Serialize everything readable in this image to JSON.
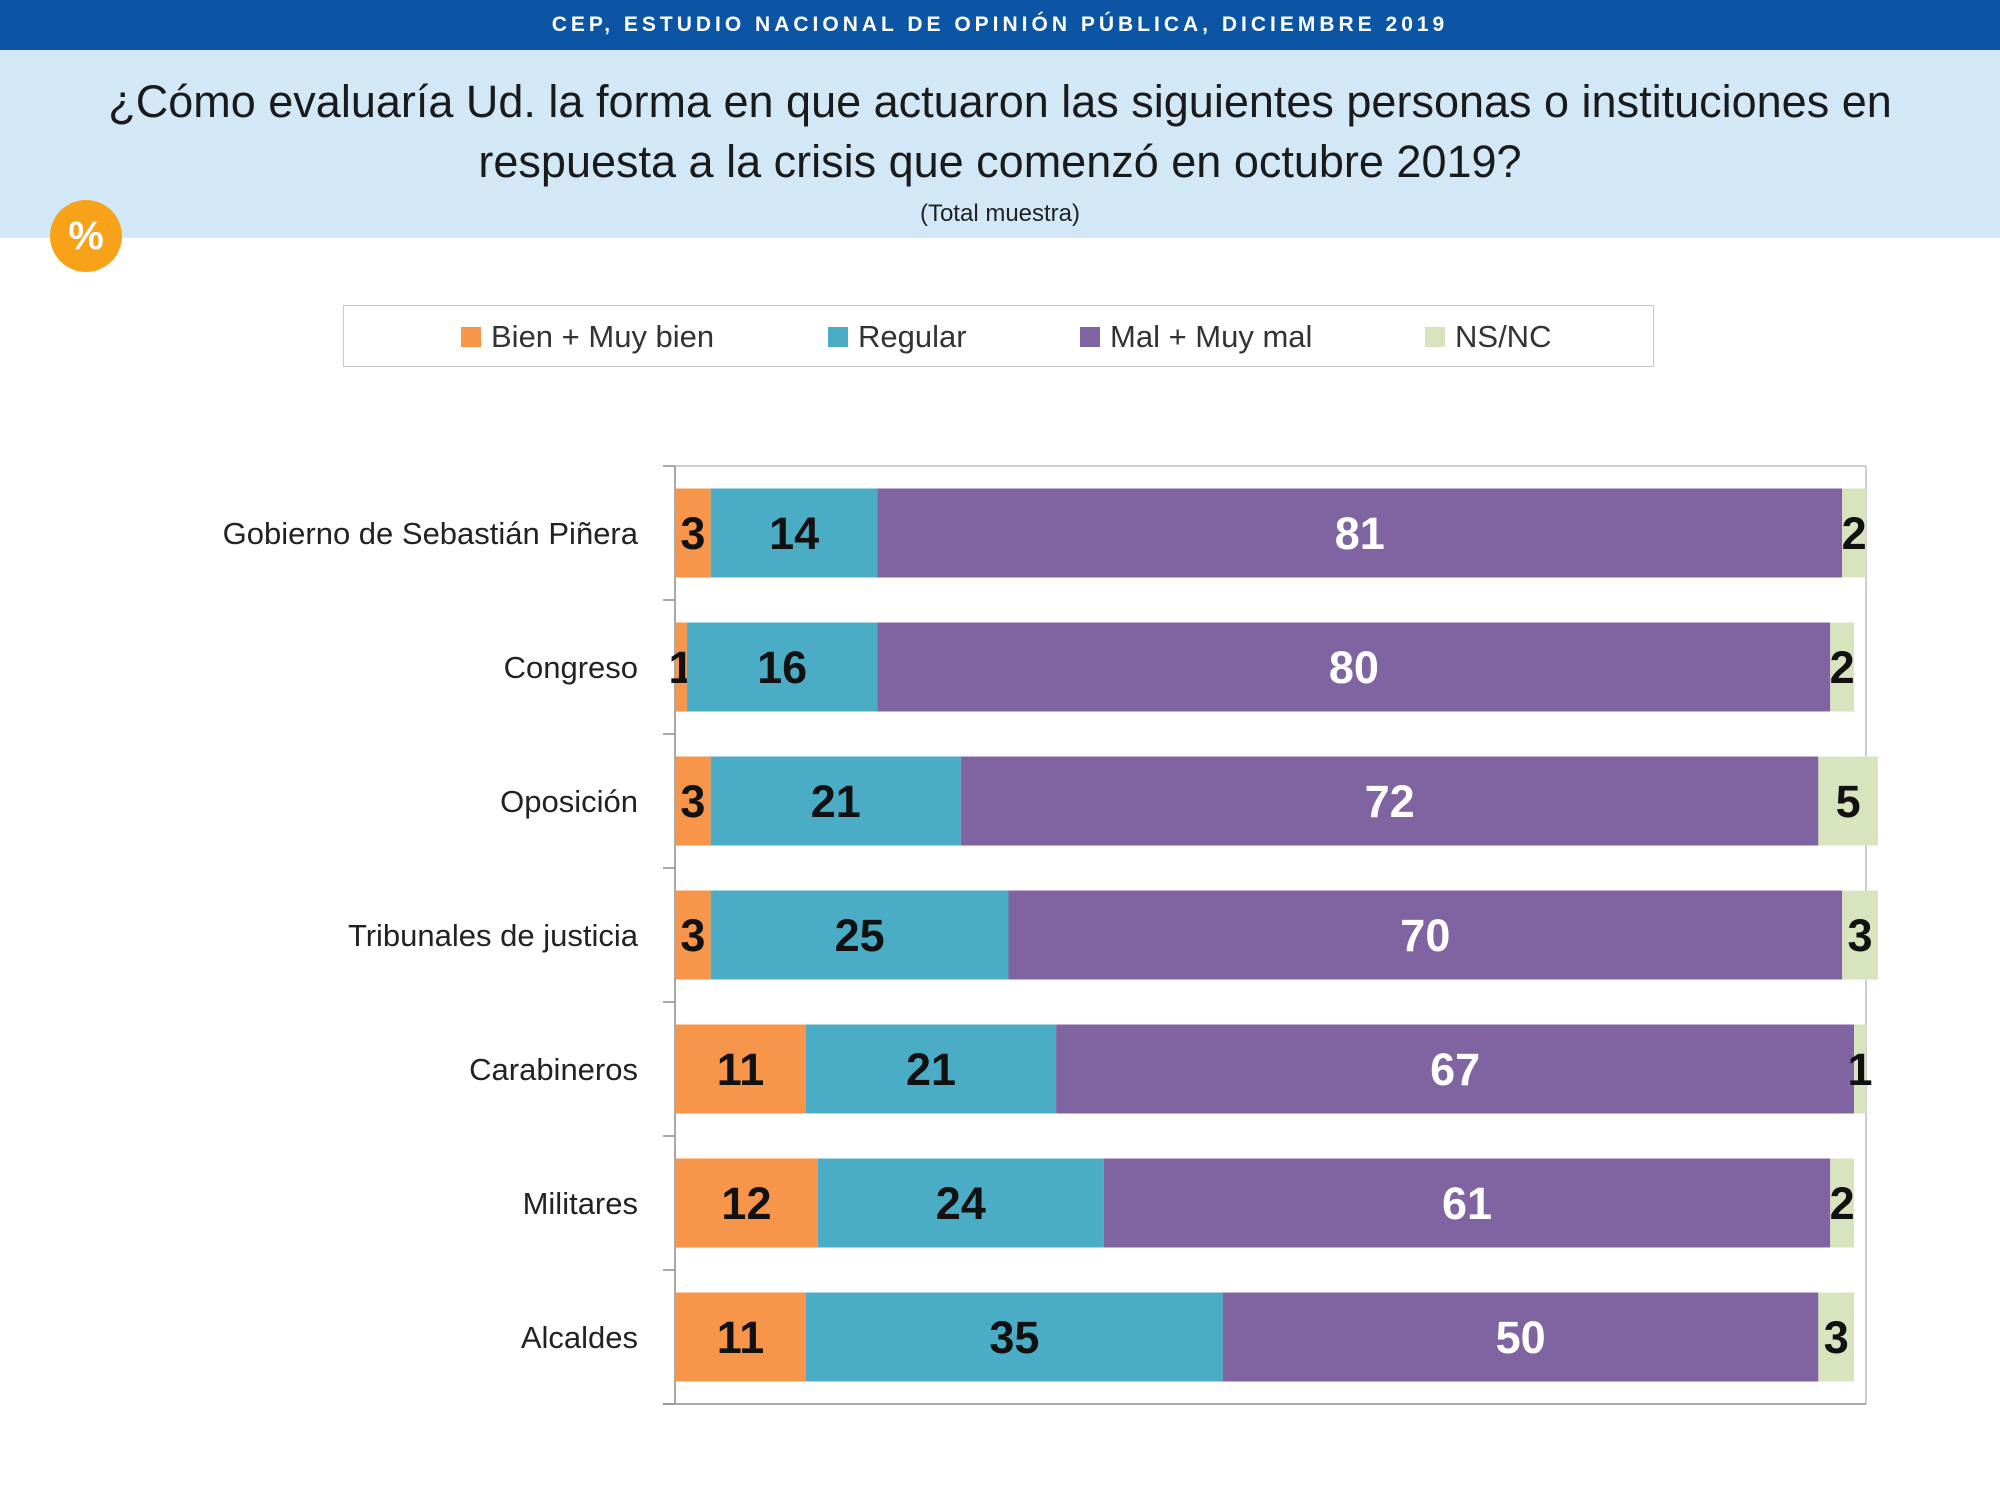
{
  "header": {
    "top_banner": "CEP, ESTUDIO NACIONAL DE OPINIÓN PÚBLICA, DICIEMBRE 2019",
    "question_line1": "¿Cómo evaluaría Ud. la forma en que actuaron las siguientes personas o instituciones en",
    "question_line2": "respuesta a la crisis que comenzó en octubre 2019?",
    "subtitle": "(Total muestra)",
    "badge": "%"
  },
  "colors": {
    "banner": "#0b55a4",
    "header_bg": "#d3e8f7",
    "badge": "#f7a219"
  },
  "chart_data": {
    "type": "bar",
    "orientation": "horizontal",
    "stacked": true,
    "legend_position": "top",
    "xlim": [
      0,
      100
    ],
    "categories": [
      "Gobierno de Sebastián Piñera",
      "Congreso",
      "Oposición",
      "Tribunales de justicia",
      "Carabineros",
      "Militares",
      "Alcaldes"
    ],
    "series": [
      {
        "name": "Bien + Muy bien",
        "color": "#f7964a",
        "label_color": "#111111",
        "values": [
          3,
          1,
          3,
          3,
          11,
          12,
          11
        ]
      },
      {
        "name": "Regular",
        "color": "#4bacc6",
        "label_color": "#111111",
        "values": [
          14,
          16,
          21,
          25,
          21,
          24,
          35
        ]
      },
      {
        "name": "Mal + Muy mal",
        "color": "#8064a2",
        "label_color": "#ffffff",
        "values": [
          81,
          80,
          72,
          70,
          67,
          61,
          50
        ]
      },
      {
        "name": "NS/NC",
        "color": "#d7e4bd",
        "label_color": "#111111",
        "values": [
          2,
          2,
          5,
          3,
          1,
          2,
          3
        ]
      }
    ]
  }
}
